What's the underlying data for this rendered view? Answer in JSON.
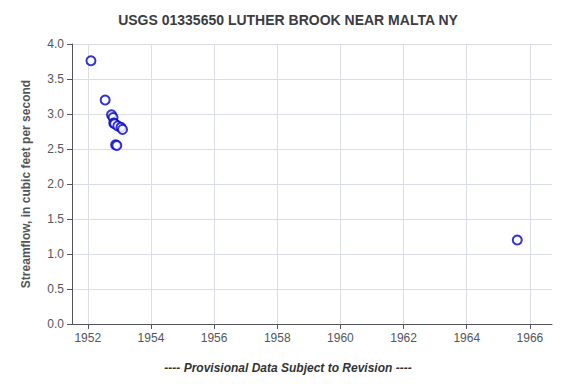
{
  "chart_data": {
    "type": "scatter",
    "title": "USGS 01335650 LUTHER BROOK NEAR MALTA NY",
    "ylabel": "Streamflow, in cubic feet per second",
    "annotation": "---- Provisional Data Subject to Revision ----",
    "x": [
      1952.1,
      1952.55,
      1952.75,
      1952.8,
      1952.82,
      1952.85,
      1952.88,
      1952.92,
      1952.95,
      1953.05,
      1953.1,
      1965.6
    ],
    "values": [
      3.76,
      3.2,
      2.99,
      2.95,
      2.87,
      2.86,
      2.56,
      2.55,
      2.83,
      2.81,
      2.78,
      1.2
    ],
    "color": "#0000cc",
    "marker": "circle",
    "xlim": [
      1951.5,
      1966.7
    ],
    "ylim": [
      0.0,
      4.0
    ],
    "xticks": [
      1952,
      1954,
      1956,
      1958,
      1960,
      1962,
      1964,
      1966
    ],
    "yticks": [
      {
        "value": 0,
        "label": "0.0"
      },
      0.5,
      {
        "value": 1,
        "label": "1.0"
      },
      1.5,
      {
        "value": 2,
        "label": "2.0"
      },
      2.5,
      {
        "value": 3,
        "label": "3.0"
      },
      3.5,
      {
        "value": 4,
        "label": "4.0"
      }
    ],
    "grid": true
  }
}
